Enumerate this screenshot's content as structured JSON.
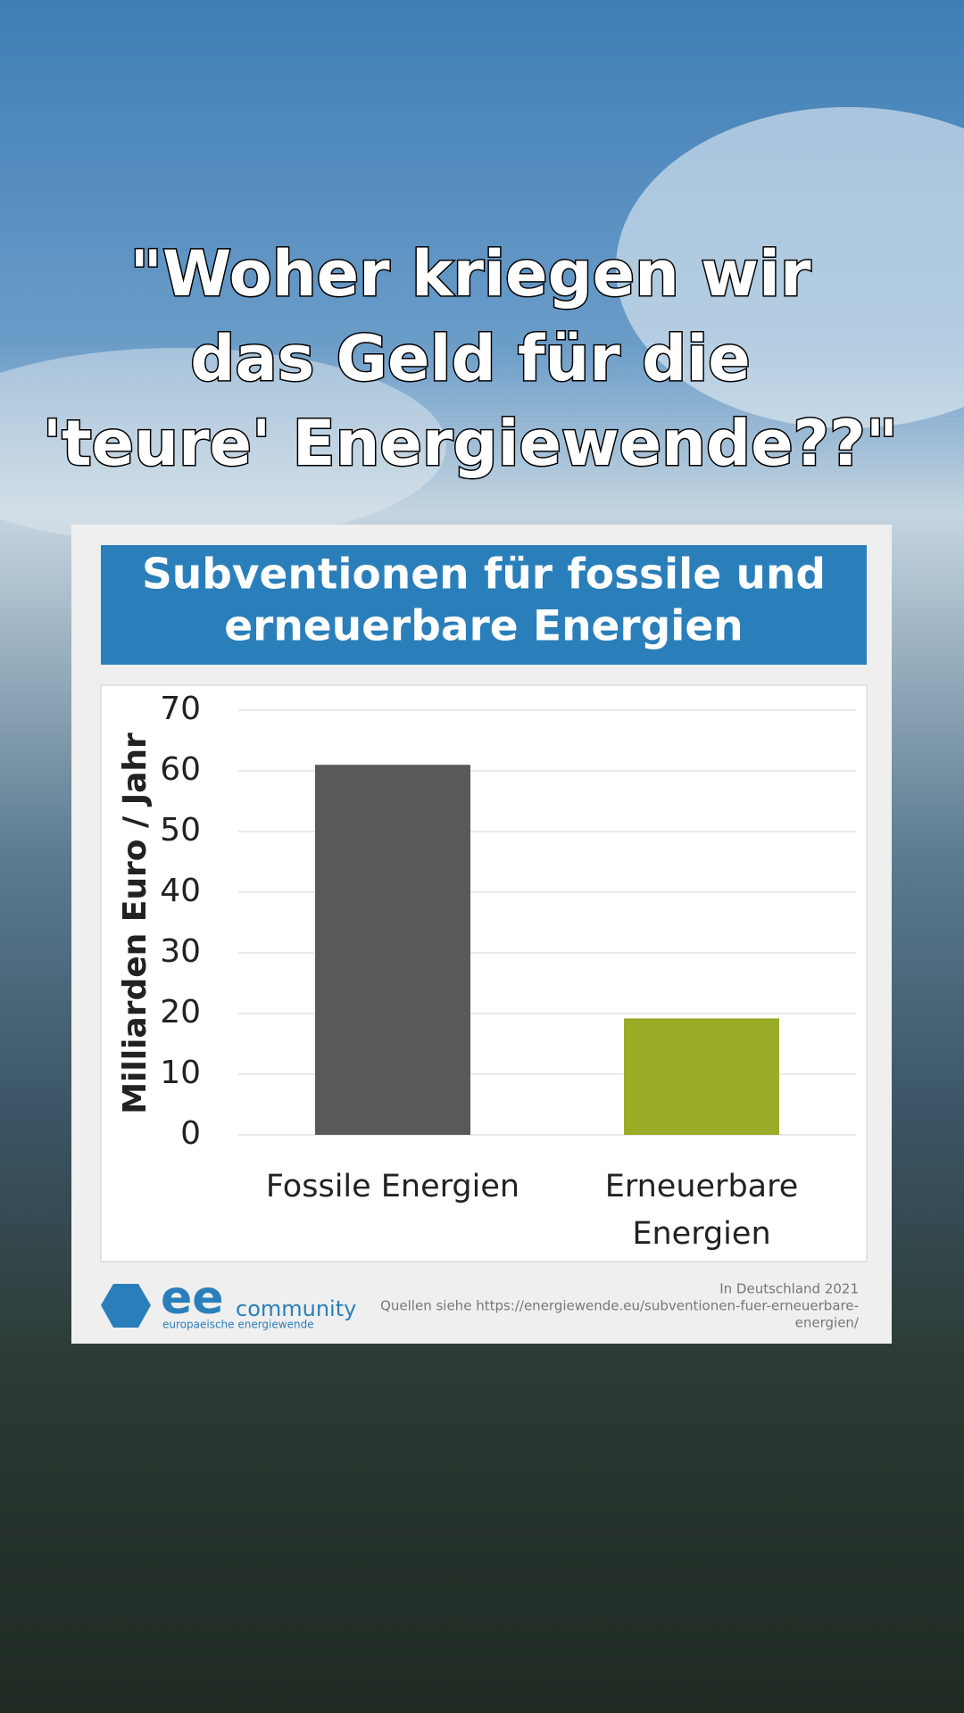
{
  "caption": [
    "\"Woher kriegen wir",
    "das Geld für die",
    "'teure' Energiewende??\""
  ],
  "chart_data": {
    "type": "bar",
    "title": [
      "Subventionen für fossile und",
      "erneuerbare Energien"
    ],
    "ylabel": "Milliarden Euro / Jahr",
    "categories": [
      "Fossile Energien",
      "Erneuerbare Energien"
    ],
    "values": [
      61,
      19.2
    ],
    "colors": [
      "#595959",
      "#9aab28"
    ],
    "ylim": [
      0,
      70
    ],
    "yticks": [
      0,
      10,
      20,
      30,
      40,
      50,
      60,
      70
    ],
    "grid": true
  },
  "logo": {
    "mark": "ee",
    "name": "community",
    "tagline": "europaeische energiewende"
  },
  "notes": [
    "In Deutschland 2021",
    "Quellen siehe https://energiewende.eu/subventionen-fuer-erneuerbare-",
    "energien/"
  ]
}
